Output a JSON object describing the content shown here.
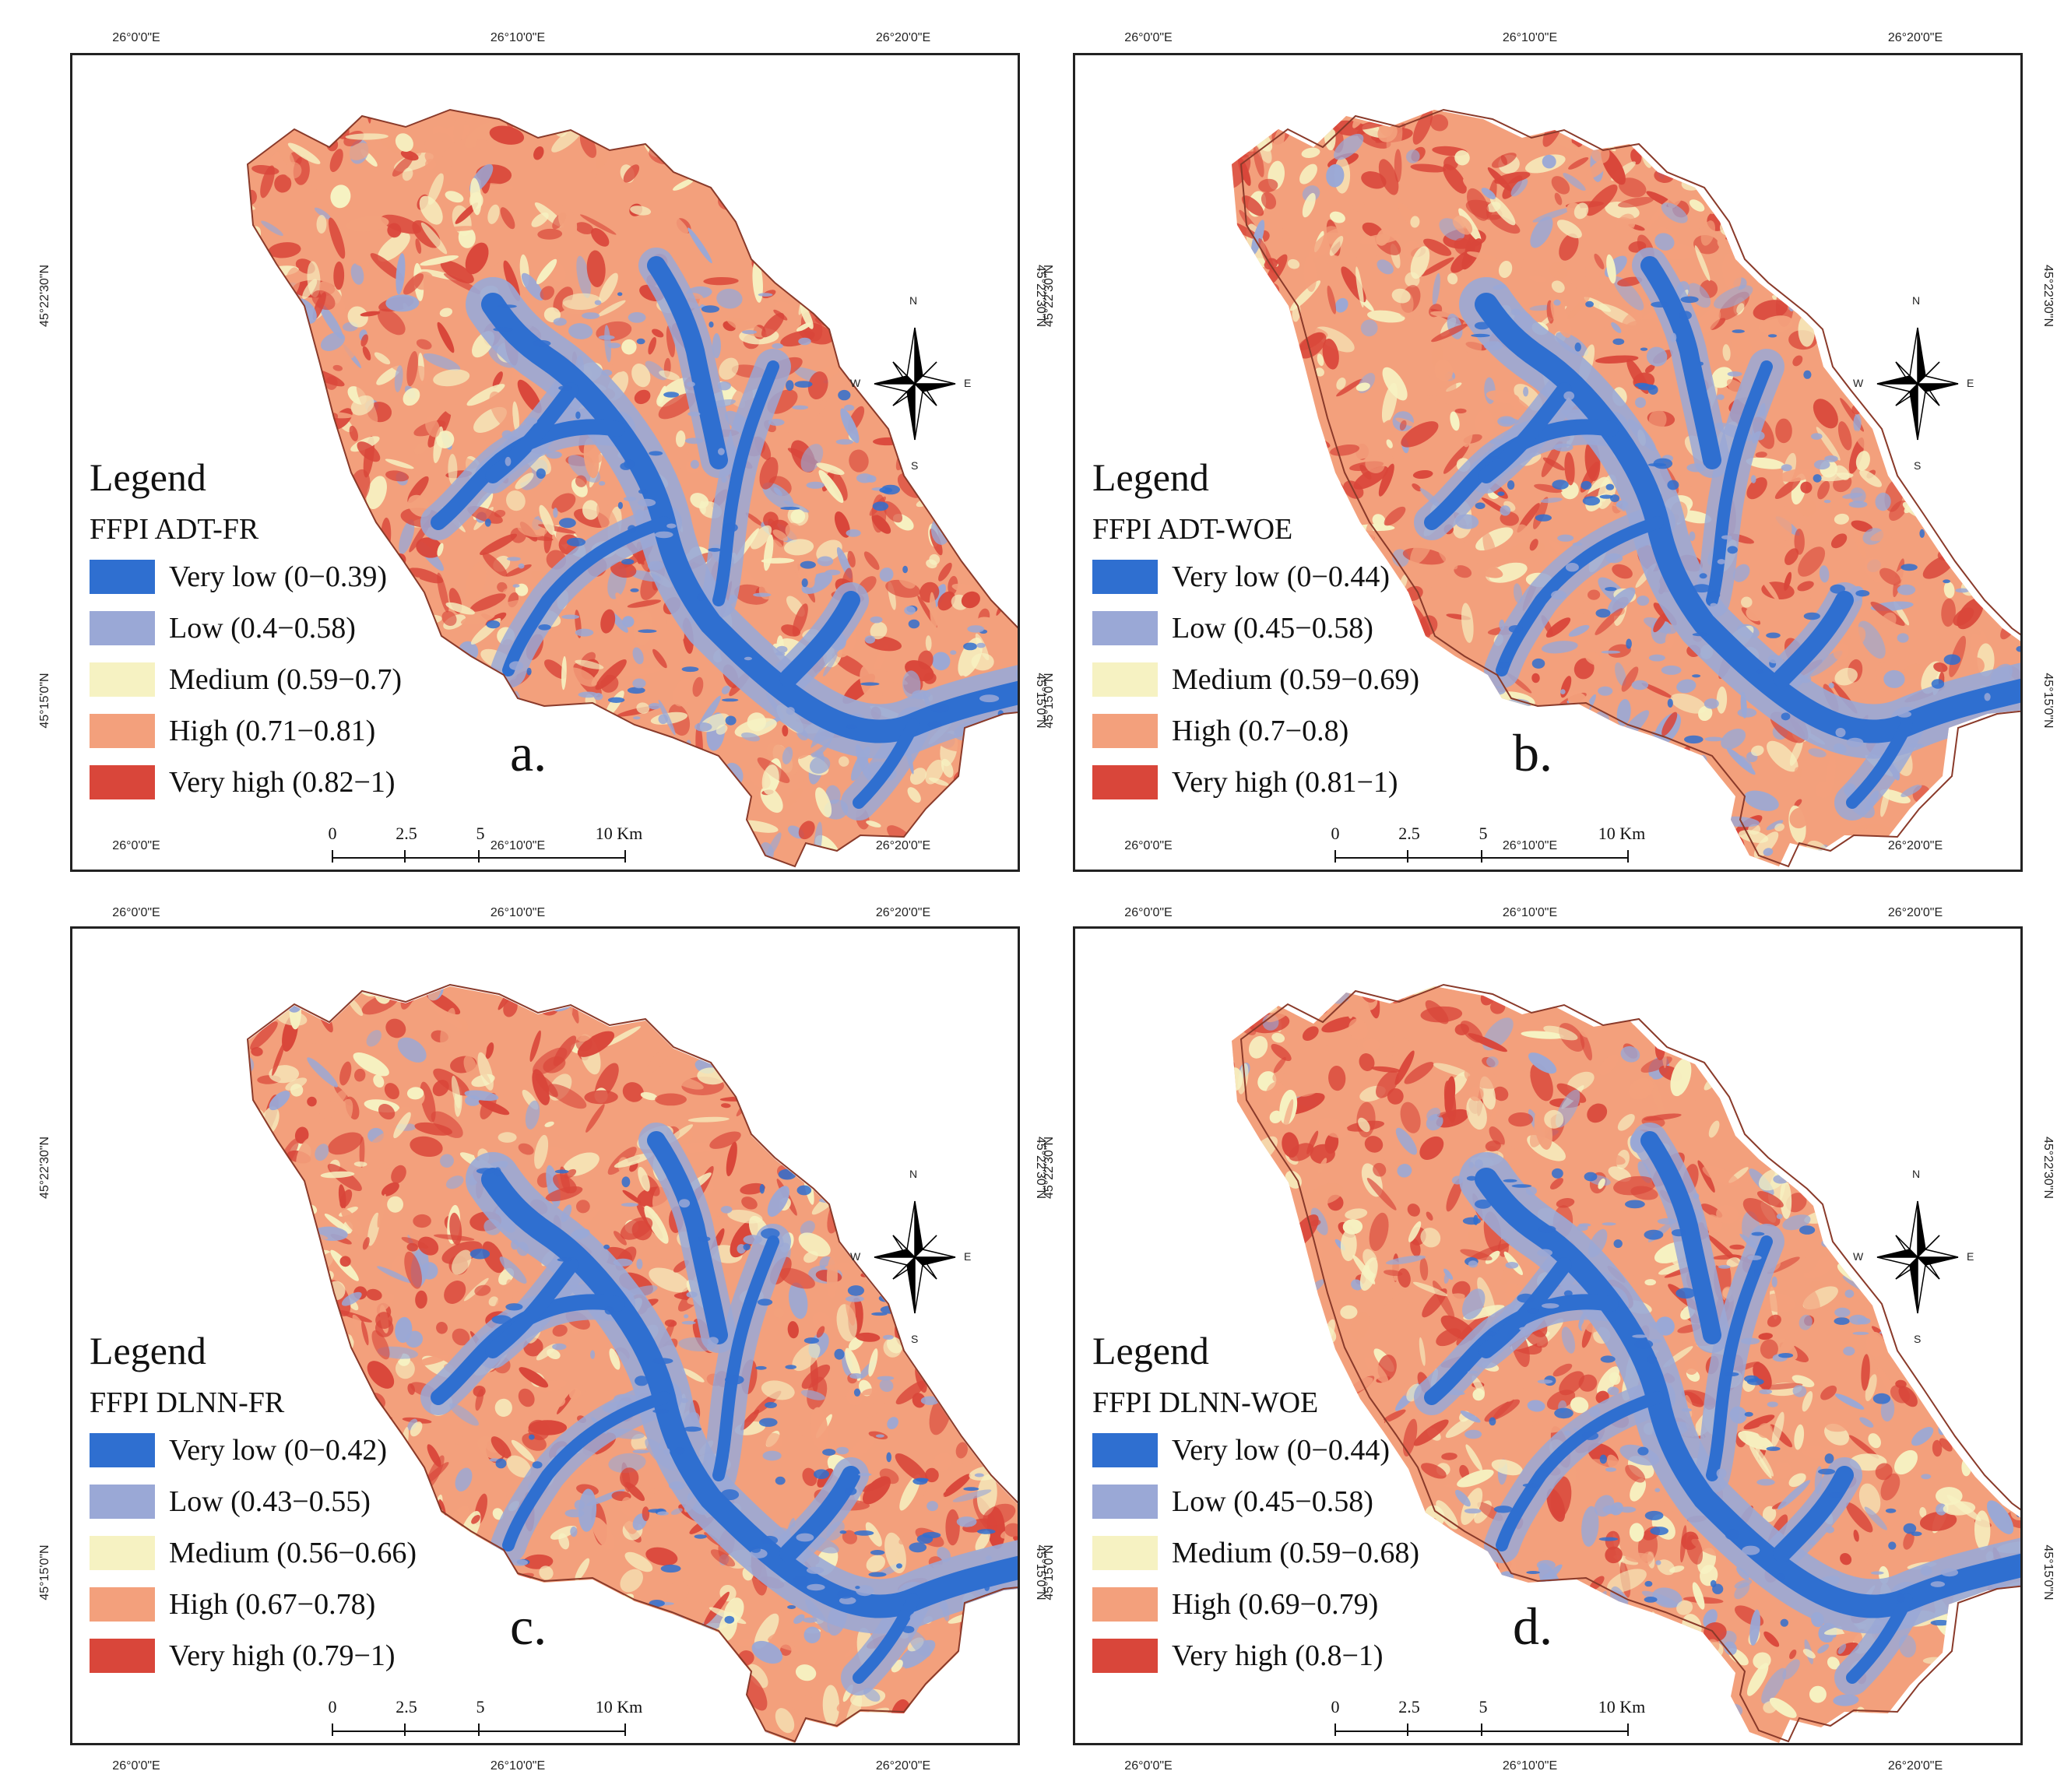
{
  "colors": {
    "very_low": "#2f6fd0",
    "low": "#9aa8d6",
    "medium": "#f6f2c2",
    "high": "#f3a07c",
    "very_high": "#d9463a"
  },
  "legend_title": "Legend",
  "compass": {
    "n": "N",
    "s": "S",
    "e": "E",
    "w": "W",
    "icon": "north-arrow-icon"
  },
  "scalebar": {
    "labels": [
      "0",
      "2.5",
      "5",
      "10 Km"
    ]
  },
  "panels": [
    {
      "letter": "a.",
      "index_name": "FFPI ADT-FR",
      "classes": [
        "Very low (0−0.39)",
        "Low (0.4−0.58)",
        "Medium (0.59−0.7)",
        "High (0.71−0.81)",
        "Very high (0.82−1)"
      ],
      "ticks_top": [
        "26°0'0\"E",
        "26°10'0\"E",
        "26°20'0\"E"
      ],
      "ticks_bottom": [
        "26°0'0\"E",
        "26°10'0\"E",
        "26°20'0\"E"
      ],
      "ticks_left": [
        "45°22'30\"N",
        "45°15'0\"N"
      ],
      "ticks_right": [
        "45°22'30\"N",
        "45°15'0\"N"
      ]
    },
    {
      "letter": "b.",
      "index_name": "FFPI ADT-WOE",
      "classes": [
        "Very low (0−0.44)",
        "Low (0.45−0.58)",
        "Medium (0.59−0.69)",
        "High (0.7−0.8)",
        "Very high (0.81−1)"
      ],
      "ticks_top": [
        "26°0'0\"E",
        "26°10'0\"E",
        "26°20'0\"E"
      ],
      "ticks_bottom": [
        "26°0'0\"E",
        "26°10'0\"E",
        "26°20'0\"E"
      ],
      "ticks_left": [
        "45°22'30\"N",
        "45°15'0\"N"
      ],
      "ticks_right": [
        "45°22'30\"N",
        "45°15'0\"N"
      ]
    },
    {
      "letter": "c.",
      "index_name": "FFPI DLNN-FR",
      "classes": [
        "Very low (0−0.42)",
        "Low (0.43−0.55)",
        "Medium (0.56−0.66)",
        "High (0.67−0.78)",
        "Very high (0.79−1)"
      ],
      "ticks_top": [
        "26°0'0\"E",
        "26°10'0\"E",
        "26°20'0\"E"
      ],
      "ticks_bottom": [
        "26°0'0\"E",
        "26°10'0\"E",
        "26°20'0\"E"
      ],
      "ticks_left": [
        "45°22'30\"N",
        "45°15'0\"N"
      ],
      "ticks_right": [
        "45°22'30\"N",
        "45°15'0\"N"
      ]
    },
    {
      "letter": "d.",
      "index_name": "FFPI DLNN-WOE",
      "classes": [
        "Very low (0−0.44)",
        "Low (0.45−0.58)",
        "Medium (0.59−0.68)",
        "High (0.69−0.79)",
        "Very high (0.8−1)"
      ],
      "ticks_top": [
        "26°0'0\"E",
        "26°10'0\"E",
        "26°20'0\"E"
      ],
      "ticks_bottom": [
        "26°0'0\"E",
        "26°10'0\"E",
        "26°20'0\"E"
      ],
      "ticks_left": [
        "45°22'30\"N",
        "45°15'0\"N"
      ],
      "ticks_right": [
        "45°22'30\"N",
        "45°15'0\"N"
      ]
    }
  ]
}
